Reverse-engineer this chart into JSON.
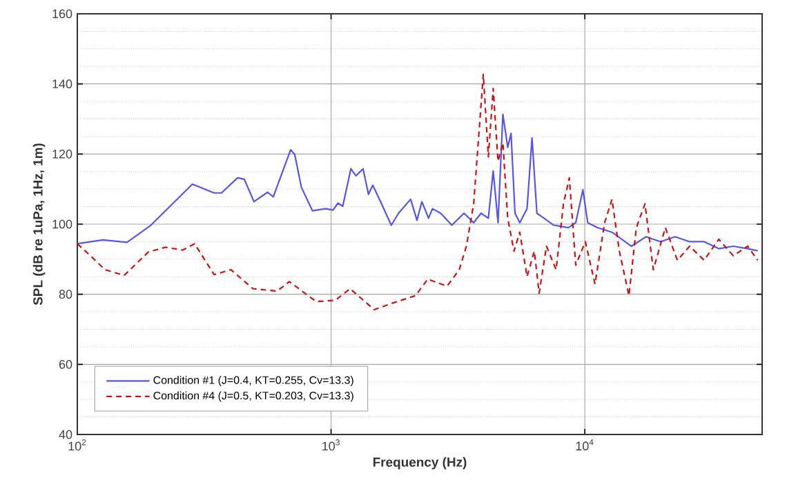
{
  "chart_data": {
    "type": "line",
    "xlabel": "Frequency (Hz)",
    "ylabel": "SPL (dB re 1uPa, 1Hz, 1m)",
    "log": "x",
    "grid": true,
    "legend": "bottom left",
    "xlim": [
      100,
      50000
    ],
    "ylim": [
      40,
      160
    ],
    "xticks": [
      {
        "value": 100,
        "label": "10$^{2}$"
      },
      {
        "value": 1000,
        "label": "10$^{3}$"
      },
      {
        "value": 10000,
        "label": "10$^{4}$"
      }
    ],
    "yticks": [
      40,
      60,
      80,
      100,
      120,
      140,
      160
    ],
    "series": [
      {
        "name": "Condition #1 (J=0.4, KT=0.255, Cv=13.3)",
        "color": "#5555ee",
        "line_style": "solid",
        "x": [
          100,
          126,
          157,
          195,
          284,
          346,
          370,
          428,
          455,
          497,
          562,
          592,
          693,
          719,
          764,
          845,
          953,
          1018,
          1065,
          1112,
          1197,
          1253,
          1337,
          1404,
          1460,
          1581,
          1727,
          1845,
          2059,
          2180,
          2280,
          2422,
          2510,
          2705,
          2993,
          3342,
          3648,
          3901,
          4168,
          4355,
          4550,
          4755,
          4969,
          5120,
          5307,
          5543,
          5921,
          6194,
          6475,
          6906,
          7548,
          8616,
          9210,
          9826,
          10270,
          11210,
          12800,
          15270,
          17420,
          19880,
          22680,
          25900,
          29540,
          33720,
          38460,
          43880,
          48000
        ],
        "values": [
          94.4,
          95.5,
          94.8,
          99.7,
          111.4,
          108.9,
          108.9,
          113.2,
          112.8,
          106.4,
          109.1,
          107.8,
          121.2,
          119.9,
          110.5,
          103.8,
          104.4,
          104,
          106,
          105.1,
          115.8,
          113.8,
          115.8,
          108.5,
          111.1,
          105.8,
          99.7,
          103.1,
          107.1,
          101.1,
          106.4,
          101.7,
          104.4,
          103.1,
          99.7,
          103.1,
          100.4,
          103.1,
          101.7,
          115.2,
          100.4,
          131.3,
          121.9,
          125.9,
          103.1,
          100.4,
          104.4,
          124.6,
          103.1,
          101.7,
          99.7,
          99,
          100.4,
          109.8,
          100.4,
          99,
          97.7,
          93.7,
          96.4,
          95,
          96.4,
          95,
          95,
          93,
          93.7,
          93,
          92.4
        ]
      },
      {
        "name": "Condition #4 (J=0.5, KT=0.203, Cv=13.3)",
        "color": "#cc1111",
        "line_style": "dashed",
        "x": [
          100,
          112.6,
          128.5,
          153,
          191,
          223,
          260,
          290,
          346,
          403,
          492,
          613,
          685,
          873,
          1041,
          1188,
          1479,
          1767,
          2153,
          2403,
          2866,
          3200,
          3415,
          3648,
          3981,
          4168,
          4355,
          4550,
          4755,
          4969,
          5260,
          5543,
          5921,
          6324,
          6610,
          7063,
          7709,
          8240,
          8690,
          9210,
          10050,
          10970,
          11970,
          12800,
          13680,
          14930,
          15960,
          17270,
          18620,
          20770,
          23170,
          25900,
          29540,
          33720,
          38460,
          43880,
          48000
        ],
        "values": [
          94.4,
          91,
          87,
          85.4,
          92.1,
          93.4,
          92.6,
          94.4,
          85.6,
          87,
          81.6,
          80.9,
          83.6,
          77.9,
          78.3,
          81.6,
          75.6,
          77.6,
          79.6,
          84.3,
          82.3,
          87,
          93.7,
          105.8,
          142.7,
          119.2,
          138.7,
          117.9,
          123.2,
          101.7,
          92.3,
          97.7,
          85,
          92.3,
          80.3,
          93.7,
          87,
          105.8,
          113.2,
          88.3,
          95,
          82.9,
          100.4,
          107.1,
          92.3,
          79.6,
          99,
          105.8,
          87,
          99,
          89.7,
          93.7,
          89.7,
          95.7,
          91,
          93.7,
          89.7
        ]
      }
    ]
  }
}
